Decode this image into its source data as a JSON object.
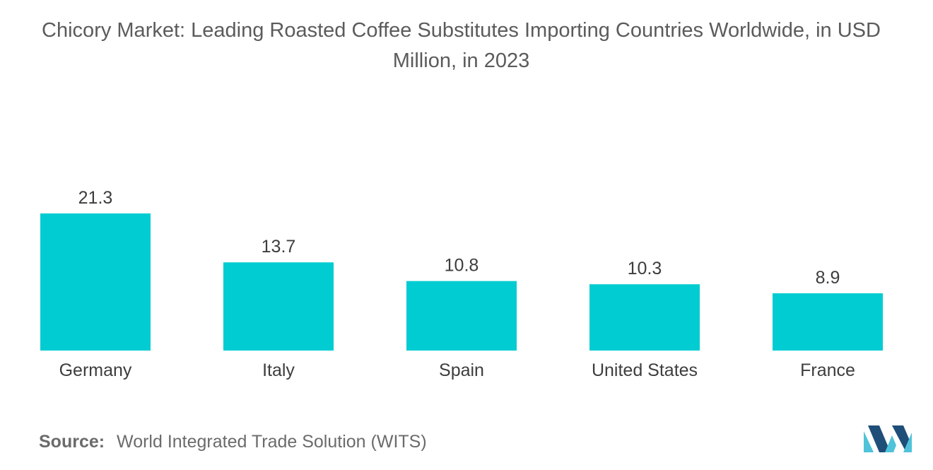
{
  "chart_data": {
    "type": "bar",
    "title": "Chicory Market: Leading Roasted Coffee Substitutes Importing Countries Worldwide, in USD Million, in 2023",
    "categories": [
      "Germany",
      "Italy",
      "Spain",
      "United States",
      "France"
    ],
    "values": [
      21.3,
      13.7,
      10.8,
      10.3,
      8.9
    ],
    "value_labels": [
      "21.3",
      "13.7",
      "10.8",
      "10.3",
      "8.9"
    ],
    "xlabel": "",
    "ylabel": "",
    "ylim": [
      0,
      21.3
    ],
    "grid": false,
    "legend": "none",
    "bar_color": "#00CCD2"
  },
  "source": {
    "label": "Source:",
    "text": "World Integrated Trade Solution (WITS)"
  },
  "colors": {
    "bar": "#00CCD2",
    "logo_dark": "#1f4e79",
    "logo_light": "#4fc3d9"
  }
}
